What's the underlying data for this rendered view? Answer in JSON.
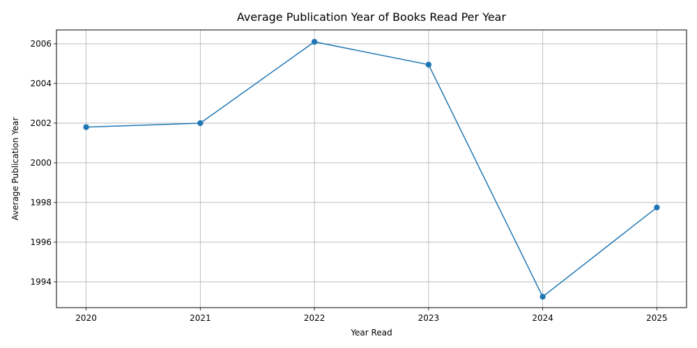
{
  "chart_data": {
    "type": "line",
    "title": "Average Publication Year of Books Read Per Year",
    "xlabel": "Year Read",
    "ylabel": "Average Publication Year",
    "x": [
      2020,
      2021,
      2022,
      2023,
      2024,
      2025
    ],
    "series": [
      {
        "values": [
          2001.8,
          2002.0,
          2006.1,
          2004.95,
          1993.25,
          1997.75
        ],
        "color": "#1f77b4",
        "marker": "circle"
      }
    ],
    "xlim": [
      2019.74,
      2025.26
    ],
    "ylim": [
      1992.7,
      2006.7
    ],
    "x_ticks": [
      2020,
      2021,
      2022,
      2023,
      2024,
      2025
    ],
    "y_ticks": [
      1994,
      1996,
      1998,
      2000,
      2002,
      2004,
      2006
    ],
    "grid": true
  }
}
